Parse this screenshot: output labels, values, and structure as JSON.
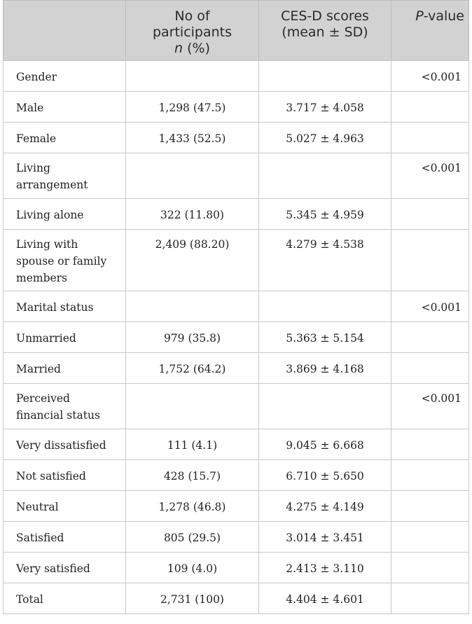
{
  "table": {
    "headers": {
      "col1": "",
      "col2_line1": "No of",
      "col2_line2": "participants",
      "col2_line3_italic": "n",
      "col2_line3_rest": " (%)",
      "col3_line1": "CES-D scores",
      "col3_line2": "(mean ± SD)",
      "col4_italic": "P",
      "col4_rest": "-value"
    },
    "rows": [
      {
        "label": "Gender",
        "n": "",
        "score": "",
        "p": "<0.001"
      },
      {
        "label": "Male",
        "n": "1,298 (47.5)",
        "score": "3.717 ± 4.058",
        "p": ""
      },
      {
        "label": "Female",
        "n": "1,433 (52.5)",
        "score": "5.027 ± 4.963",
        "p": ""
      },
      {
        "label": "Living arrangement",
        "n": "",
        "score": "",
        "p": "<0.001"
      },
      {
        "label": "Living alone",
        "n": "322 (11.80)",
        "score": "5.345 ± 4.959",
        "p": ""
      },
      {
        "label": "Living with spouse or family members",
        "n": "2,409 (88.20)",
        "score": "4.279 ± 4.538",
        "p": ""
      },
      {
        "label": "Marital status",
        "n": "",
        "score": "",
        "p": "<0.001"
      },
      {
        "label": "Unmarried",
        "n": "979 (35.8)",
        "score": "5.363 ± 5.154",
        "p": ""
      },
      {
        "label": "Married",
        "n": "1,752 (64.2)",
        "score": "3.869 ± 4.168",
        "p": ""
      },
      {
        "label": "Perceived financial status",
        "n": "",
        "score": "",
        "p": "<0.001"
      },
      {
        "label": "Very dissatisfied",
        "n": "111 (4.1)",
        "score": "9.045 ± 6.668",
        "p": ""
      },
      {
        "label": "Not satisfied",
        "n": "428 (15.7)",
        "score": "6.710 ± 5.650",
        "p": ""
      },
      {
        "label": "Neutral",
        "n": "1,278 (46.8)",
        "score": "4.275 ± 4.149",
        "p": ""
      },
      {
        "label": "Satisfied",
        "n": "805 (29.5)",
        "score": "3.014 ± 3.451",
        "p": ""
      },
      {
        "label": "Very satisfied",
        "n": "109 (4.0)",
        "score": "2.413 ± 3.110",
        "p": ""
      },
      {
        "label": "Total",
        "n": "2,731 (100)",
        "score": "4.404 ± 4.601",
        "p": ""
      }
    ]
  },
  "colors": {
    "header_background": "#d2d2d2",
    "border": "#c8c8c8",
    "text": "#222222"
  }
}
